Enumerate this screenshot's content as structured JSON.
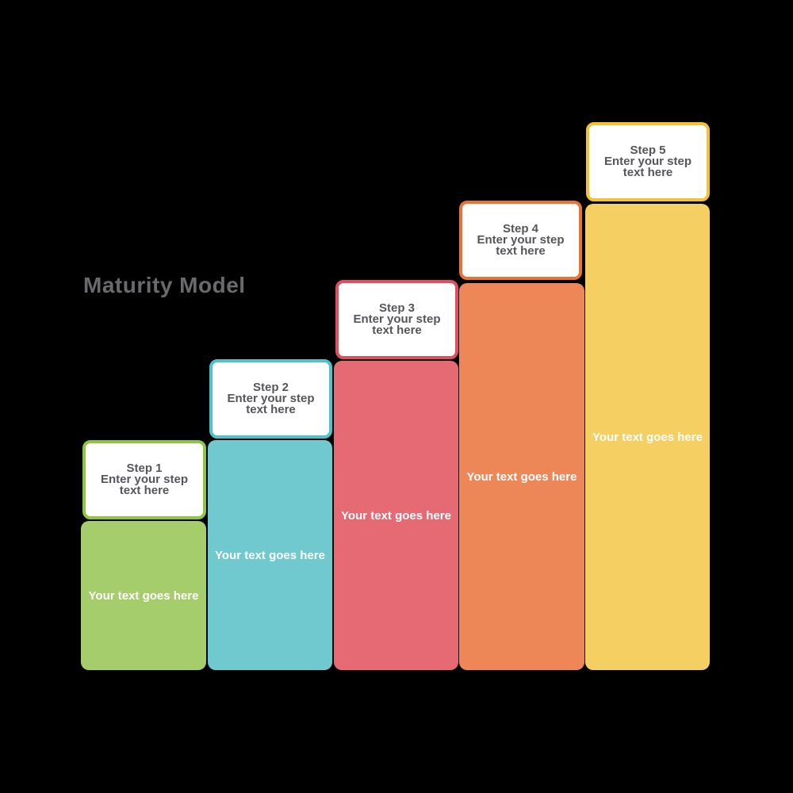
{
  "diagram": {
    "title": "Maturity Model",
    "title_color": "#6a6a6d",
    "step_text_color": "#55565a",
    "bar_text_color": "#ffffff",
    "background_color": "#000000",
    "steps": [
      {
        "title": "Step 1",
        "subtitle": "Enter your step text here",
        "body": "Your text goes here",
        "border_color": "#8fc640",
        "bar_color": "#a5cd6b"
      },
      {
        "title": "Step 2",
        "subtitle": "Enter your step text here",
        "body": "Your text goes here",
        "border_color": "#4ec3cb",
        "bar_color": "#6fc9cf"
      },
      {
        "title": "Step 3",
        "subtitle": "Enter your step text here",
        "body": "Your text goes here",
        "border_color": "#e04f5d",
        "bar_color": "#e56a74"
      },
      {
        "title": "Step 4",
        "subtitle": "Enter your step text here",
        "body": "Your text goes here",
        "border_color": "#e87334",
        "bar_color": "#ee8758"
      },
      {
        "title": "Step 5",
        "subtitle": "Enter your step text here",
        "body": "Your text goes here",
        "border_color": "#f3c233",
        "bar_color": "#f6cf63"
      }
    ]
  }
}
